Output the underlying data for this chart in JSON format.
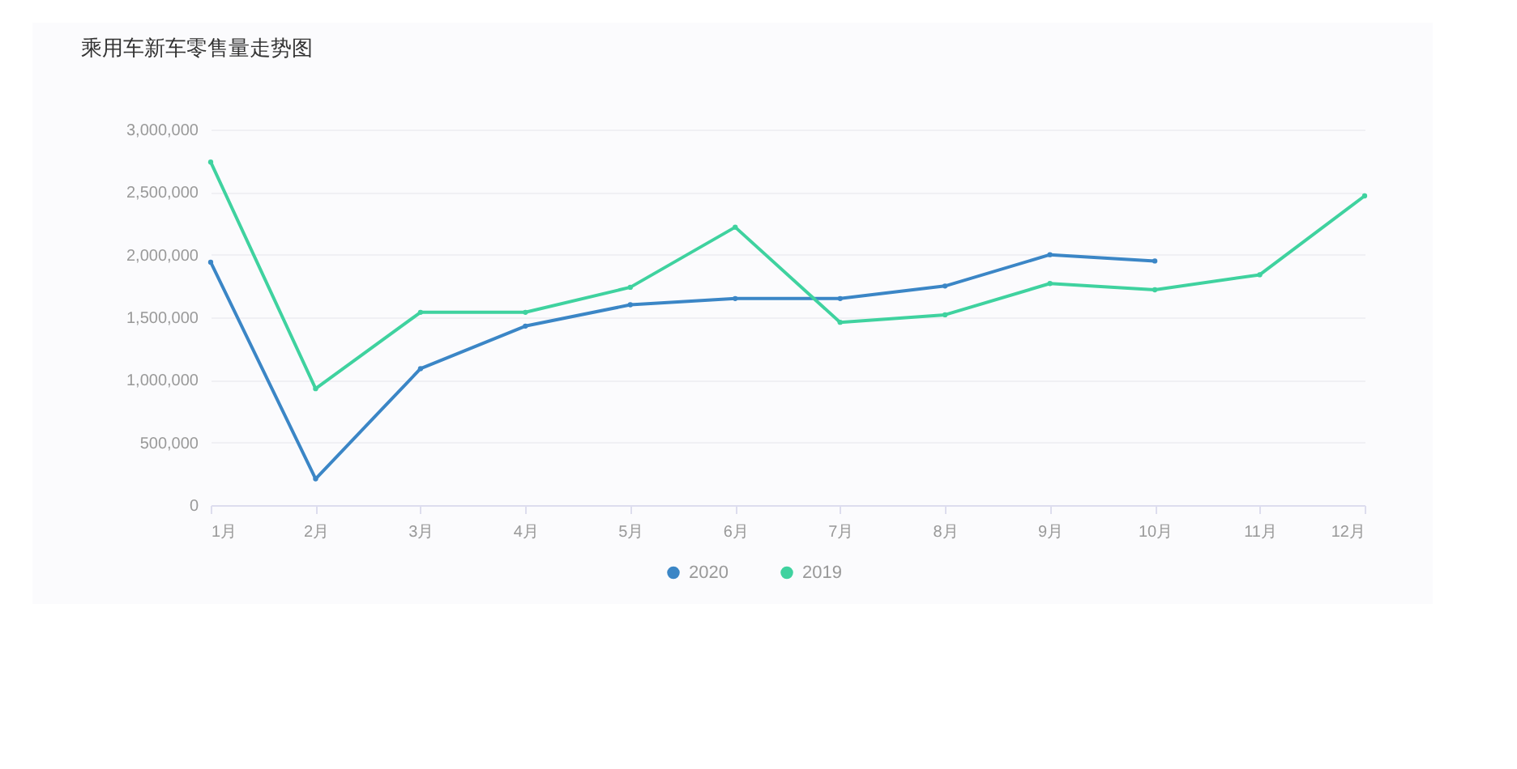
{
  "chart_data": {
    "type": "line",
    "title": "乘用车新车零售量走势图",
    "categories": [
      "1月",
      "2月",
      "3月",
      "4月",
      "5月",
      "6月",
      "7月",
      "8月",
      "9月",
      "10月",
      "11月",
      "12月"
    ],
    "series": [
      {
        "name": "2020",
        "color": "#3b86c6",
        "values": [
          1940000,
          210000,
          1090000,
          1430000,
          1600000,
          1650000,
          1650000,
          1750000,
          2000000,
          1950000,
          null,
          null
        ]
      },
      {
        "name": "2019",
        "color": "#3fd29f",
        "values": [
          2740000,
          930000,
          1540000,
          1540000,
          1740000,
          2220000,
          1460000,
          1520000,
          1770000,
          1720000,
          1840000,
          2470000
        ]
      }
    ],
    "ylim": [
      0,
      3000000
    ],
    "yticks": [
      0,
      {
        "value": 500000,
        "label": "500,000"
      },
      {
        "value": 1000000,
        "label": "1,000,000"
      },
      {
        "value": 1500000,
        "label": "1,500,000"
      },
      {
        "value": 2000000,
        "label": "2,000,000"
      },
      {
        "value": 2500000,
        "label": "2,500,000"
      },
      {
        "value": 3000000,
        "label": "3,000,000"
      }
    ],
    "grid": "y",
    "legend": "bottom",
    "marker": "circle",
    "line_style": "solid"
  }
}
